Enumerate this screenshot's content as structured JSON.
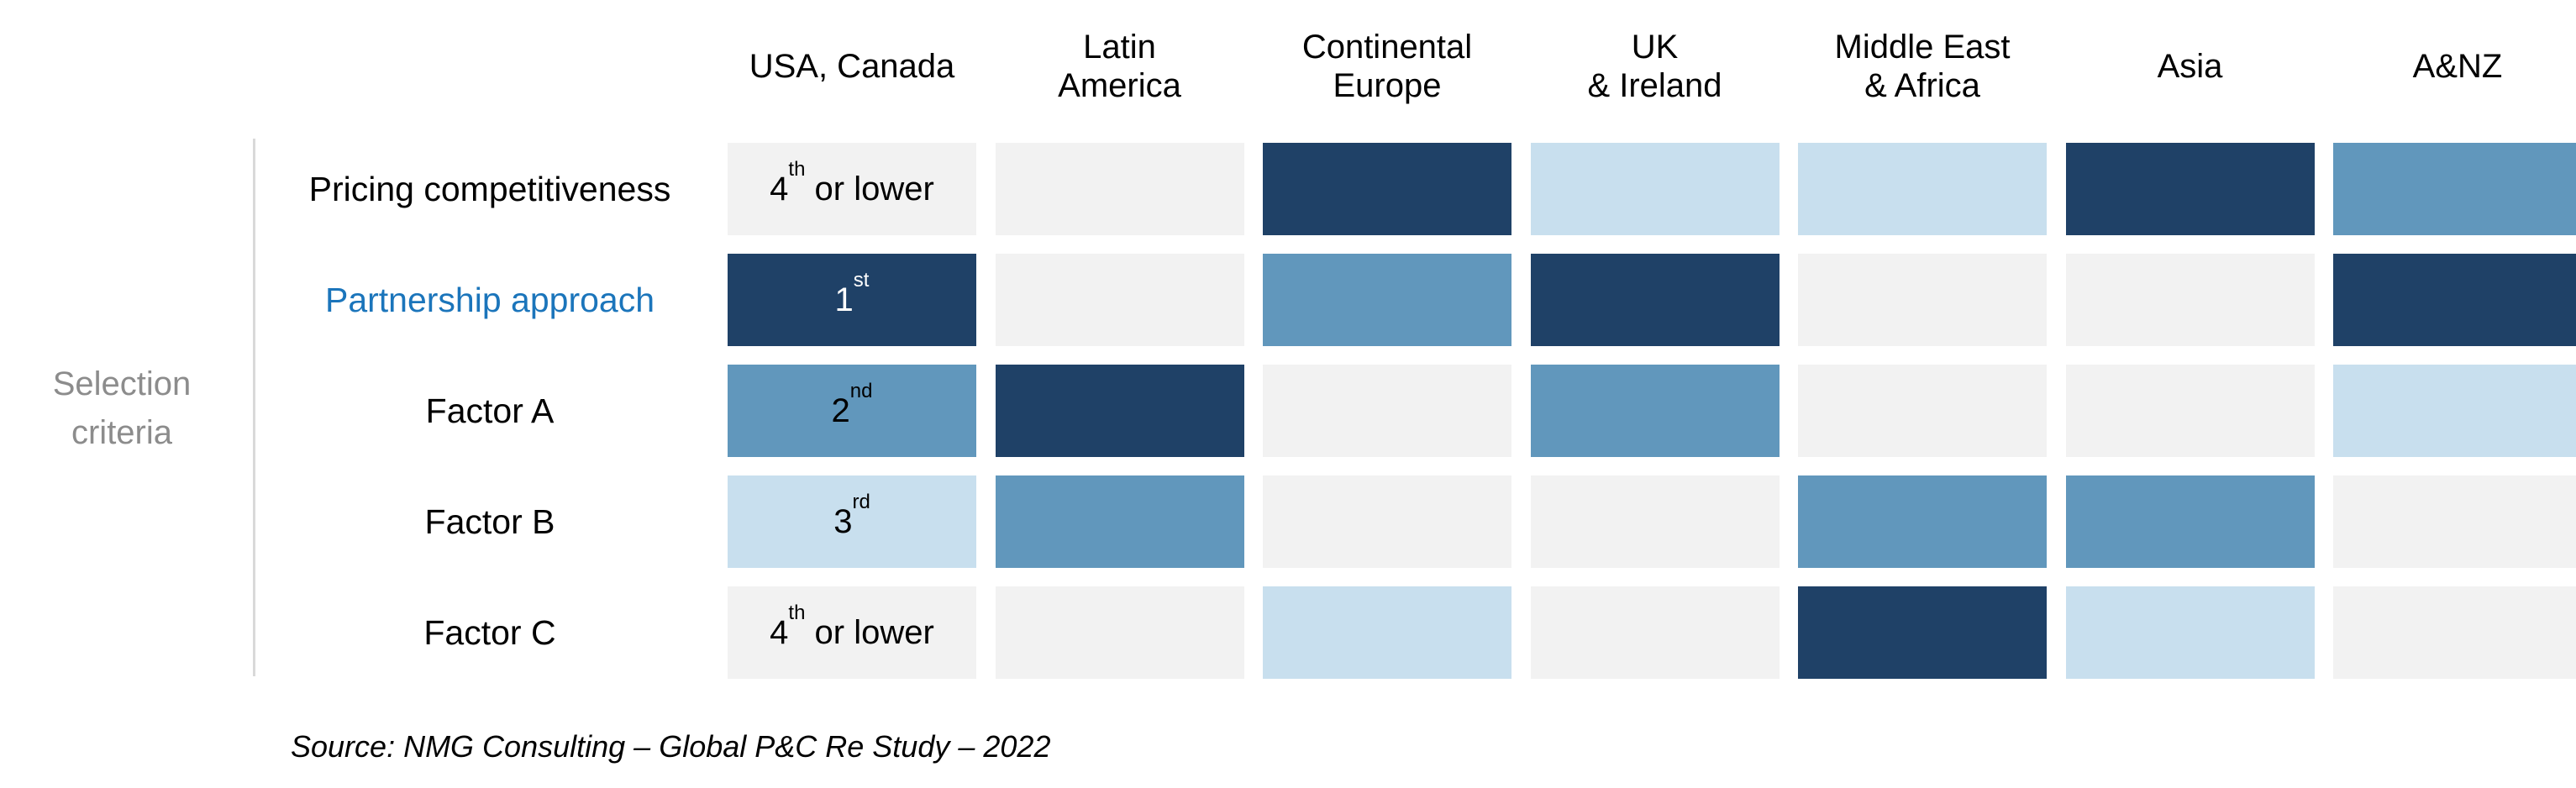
{
  "chart_data": {
    "type": "table",
    "columns": [
      {
        "lines": [
          "USA, Canada"
        ]
      },
      {
        "lines": [
          "Latin",
          "America"
        ]
      },
      {
        "lines": [
          "Continental",
          "Europe"
        ]
      },
      {
        "lines": [
          "UK",
          "& Ireland"
        ]
      },
      {
        "lines": [
          "Middle East",
          "& Africa"
        ]
      },
      {
        "lines": [
          "Asia"
        ]
      },
      {
        "lines": [
          "A&NZ"
        ]
      }
    ],
    "group_label": "Selection criteria",
    "rows": [
      {
        "label": "Pricing competitiveness",
        "highlight": false,
        "ranks": [
          4,
          4,
          1,
          3,
          3,
          1,
          2
        ]
      },
      {
        "label": "Partnership approach",
        "highlight": true,
        "ranks": [
          1,
          4,
          2,
          1,
          4,
          4,
          1
        ]
      },
      {
        "label": "Factor A",
        "highlight": false,
        "ranks": [
          2,
          1,
          4,
          2,
          4,
          4,
          3
        ]
      },
      {
        "label": "Factor B",
        "highlight": false,
        "ranks": [
          3,
          2,
          4,
          4,
          2,
          2,
          4
        ]
      },
      {
        "label": "Factor C",
        "highlight": false,
        "ranks": [
          4,
          4,
          3,
          4,
          1,
          3,
          4
        ]
      }
    ],
    "legend_column_index": 0,
    "rank_legend": [
      {
        "rank": 1,
        "base": "1",
        "sup": "st",
        "suffix": "",
        "color": "#1f4167",
        "text_color": "#ffffff"
      },
      {
        "rank": 2,
        "base": "2",
        "sup": "nd",
        "suffix": "",
        "color": "#6197bc",
        "text_color": "#000000"
      },
      {
        "rank": 3,
        "base": "3",
        "sup": "rd",
        "suffix": "",
        "color": "#c8dfee",
        "text_color": "#000000"
      },
      {
        "rank": 4,
        "base": "4",
        "sup": "th",
        "suffix": " or lower",
        "color": "#f2f2f2",
        "text_color": "#000000"
      }
    ]
  },
  "source": "Source: NMG Consulting – Global P&C Re Study – 2022"
}
